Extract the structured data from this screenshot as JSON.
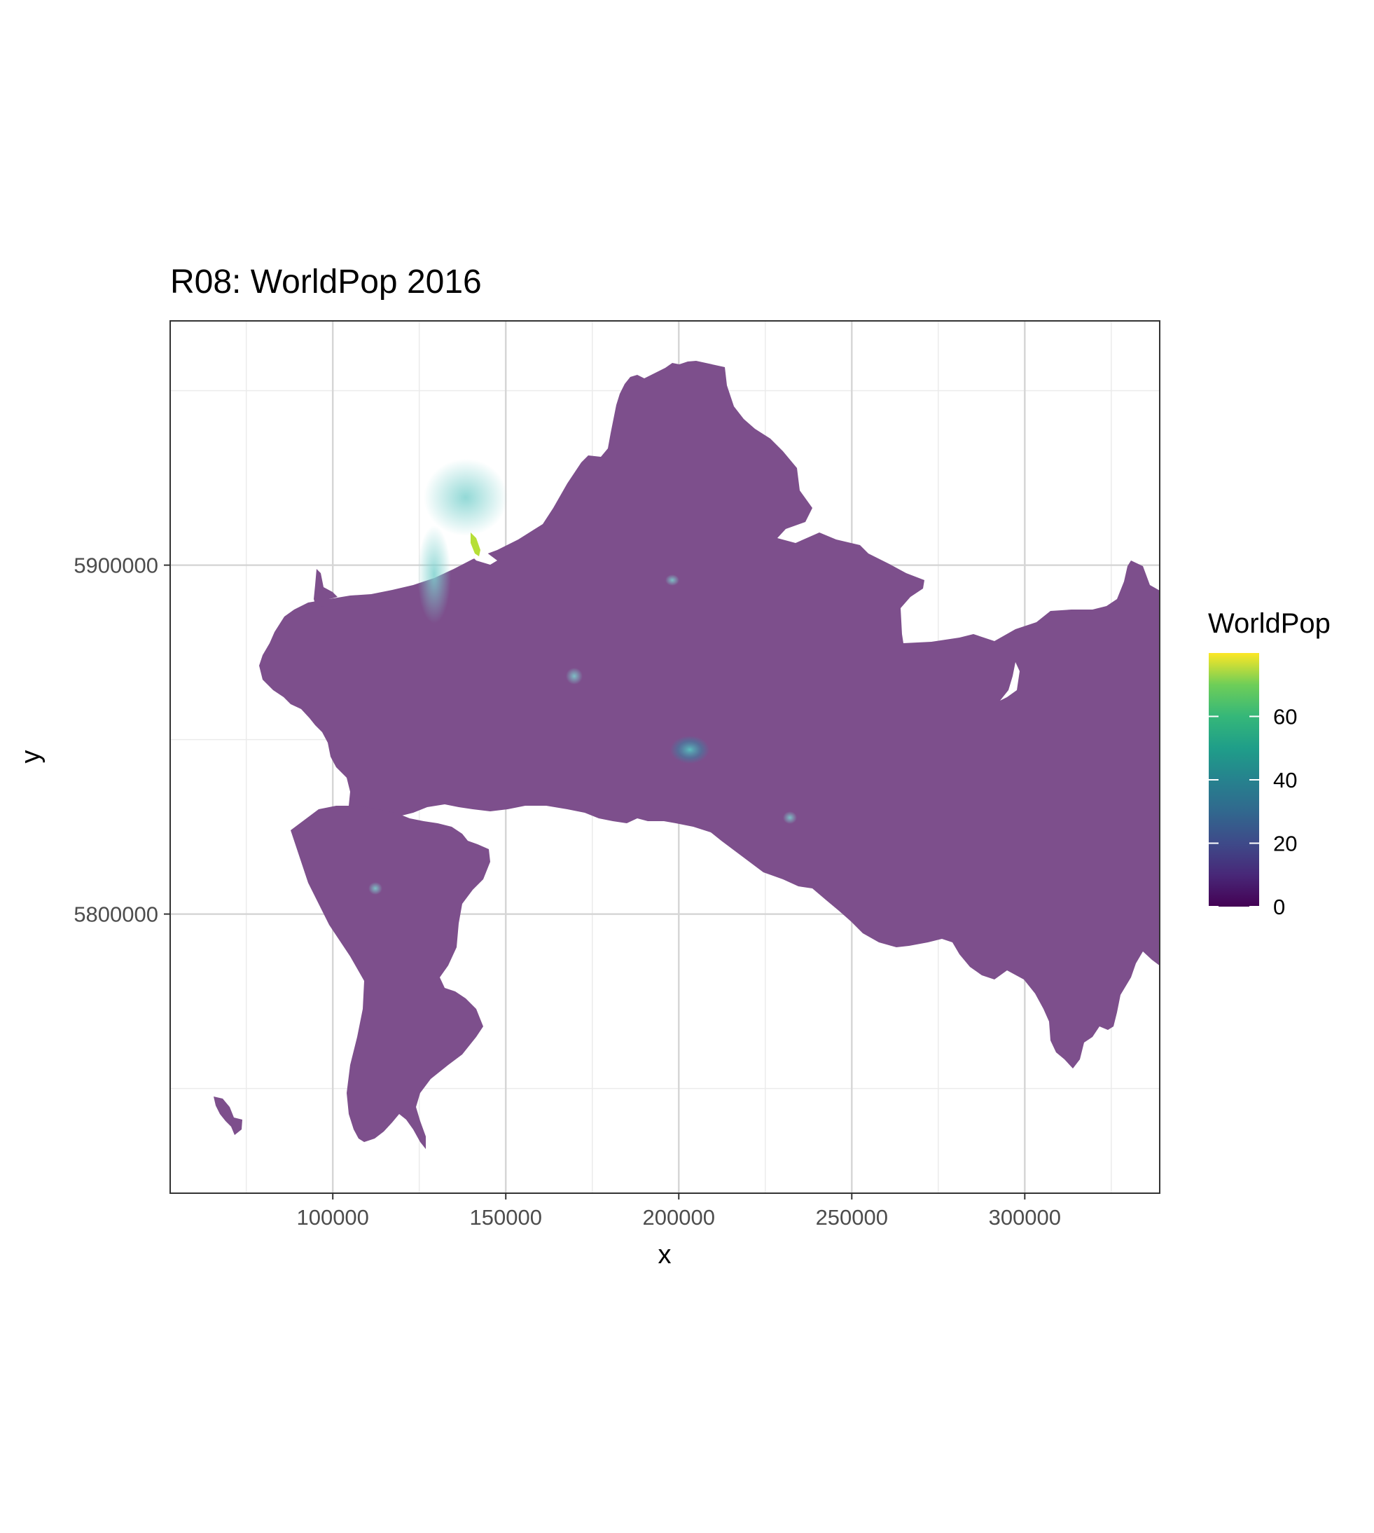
{
  "chart_data": {
    "type": "heatmap",
    "title": "R08: WorldPop 2016",
    "xlabel": "x",
    "ylabel": "y",
    "x_ticks": [
      100000,
      150000,
      200000,
      250000,
      300000
    ],
    "y_ticks": [
      5800000,
      5900000
    ],
    "x_tick_labels": [
      "100000",
      "150000",
      "200000",
      "250000",
      "300000"
    ],
    "y_tick_labels": [
      "5800000",
      "5900000"
    ],
    "xlim": [
      53000,
      339000
    ],
    "ylim": [
      5720000,
      5970000
    ],
    "grid": true,
    "legend": {
      "title": "WorldPop",
      "position": "right",
      "ticks": [
        0,
        20,
        40,
        60
      ],
      "tick_labels": [
        "0",
        "20",
        "40",
        "60"
      ],
      "range": [
        0,
        80
      ],
      "colormap": "viridis"
    },
    "colors": {
      "base": "#7d4f8c",
      "low": "#440154",
      "high": "#fde725"
    }
  }
}
